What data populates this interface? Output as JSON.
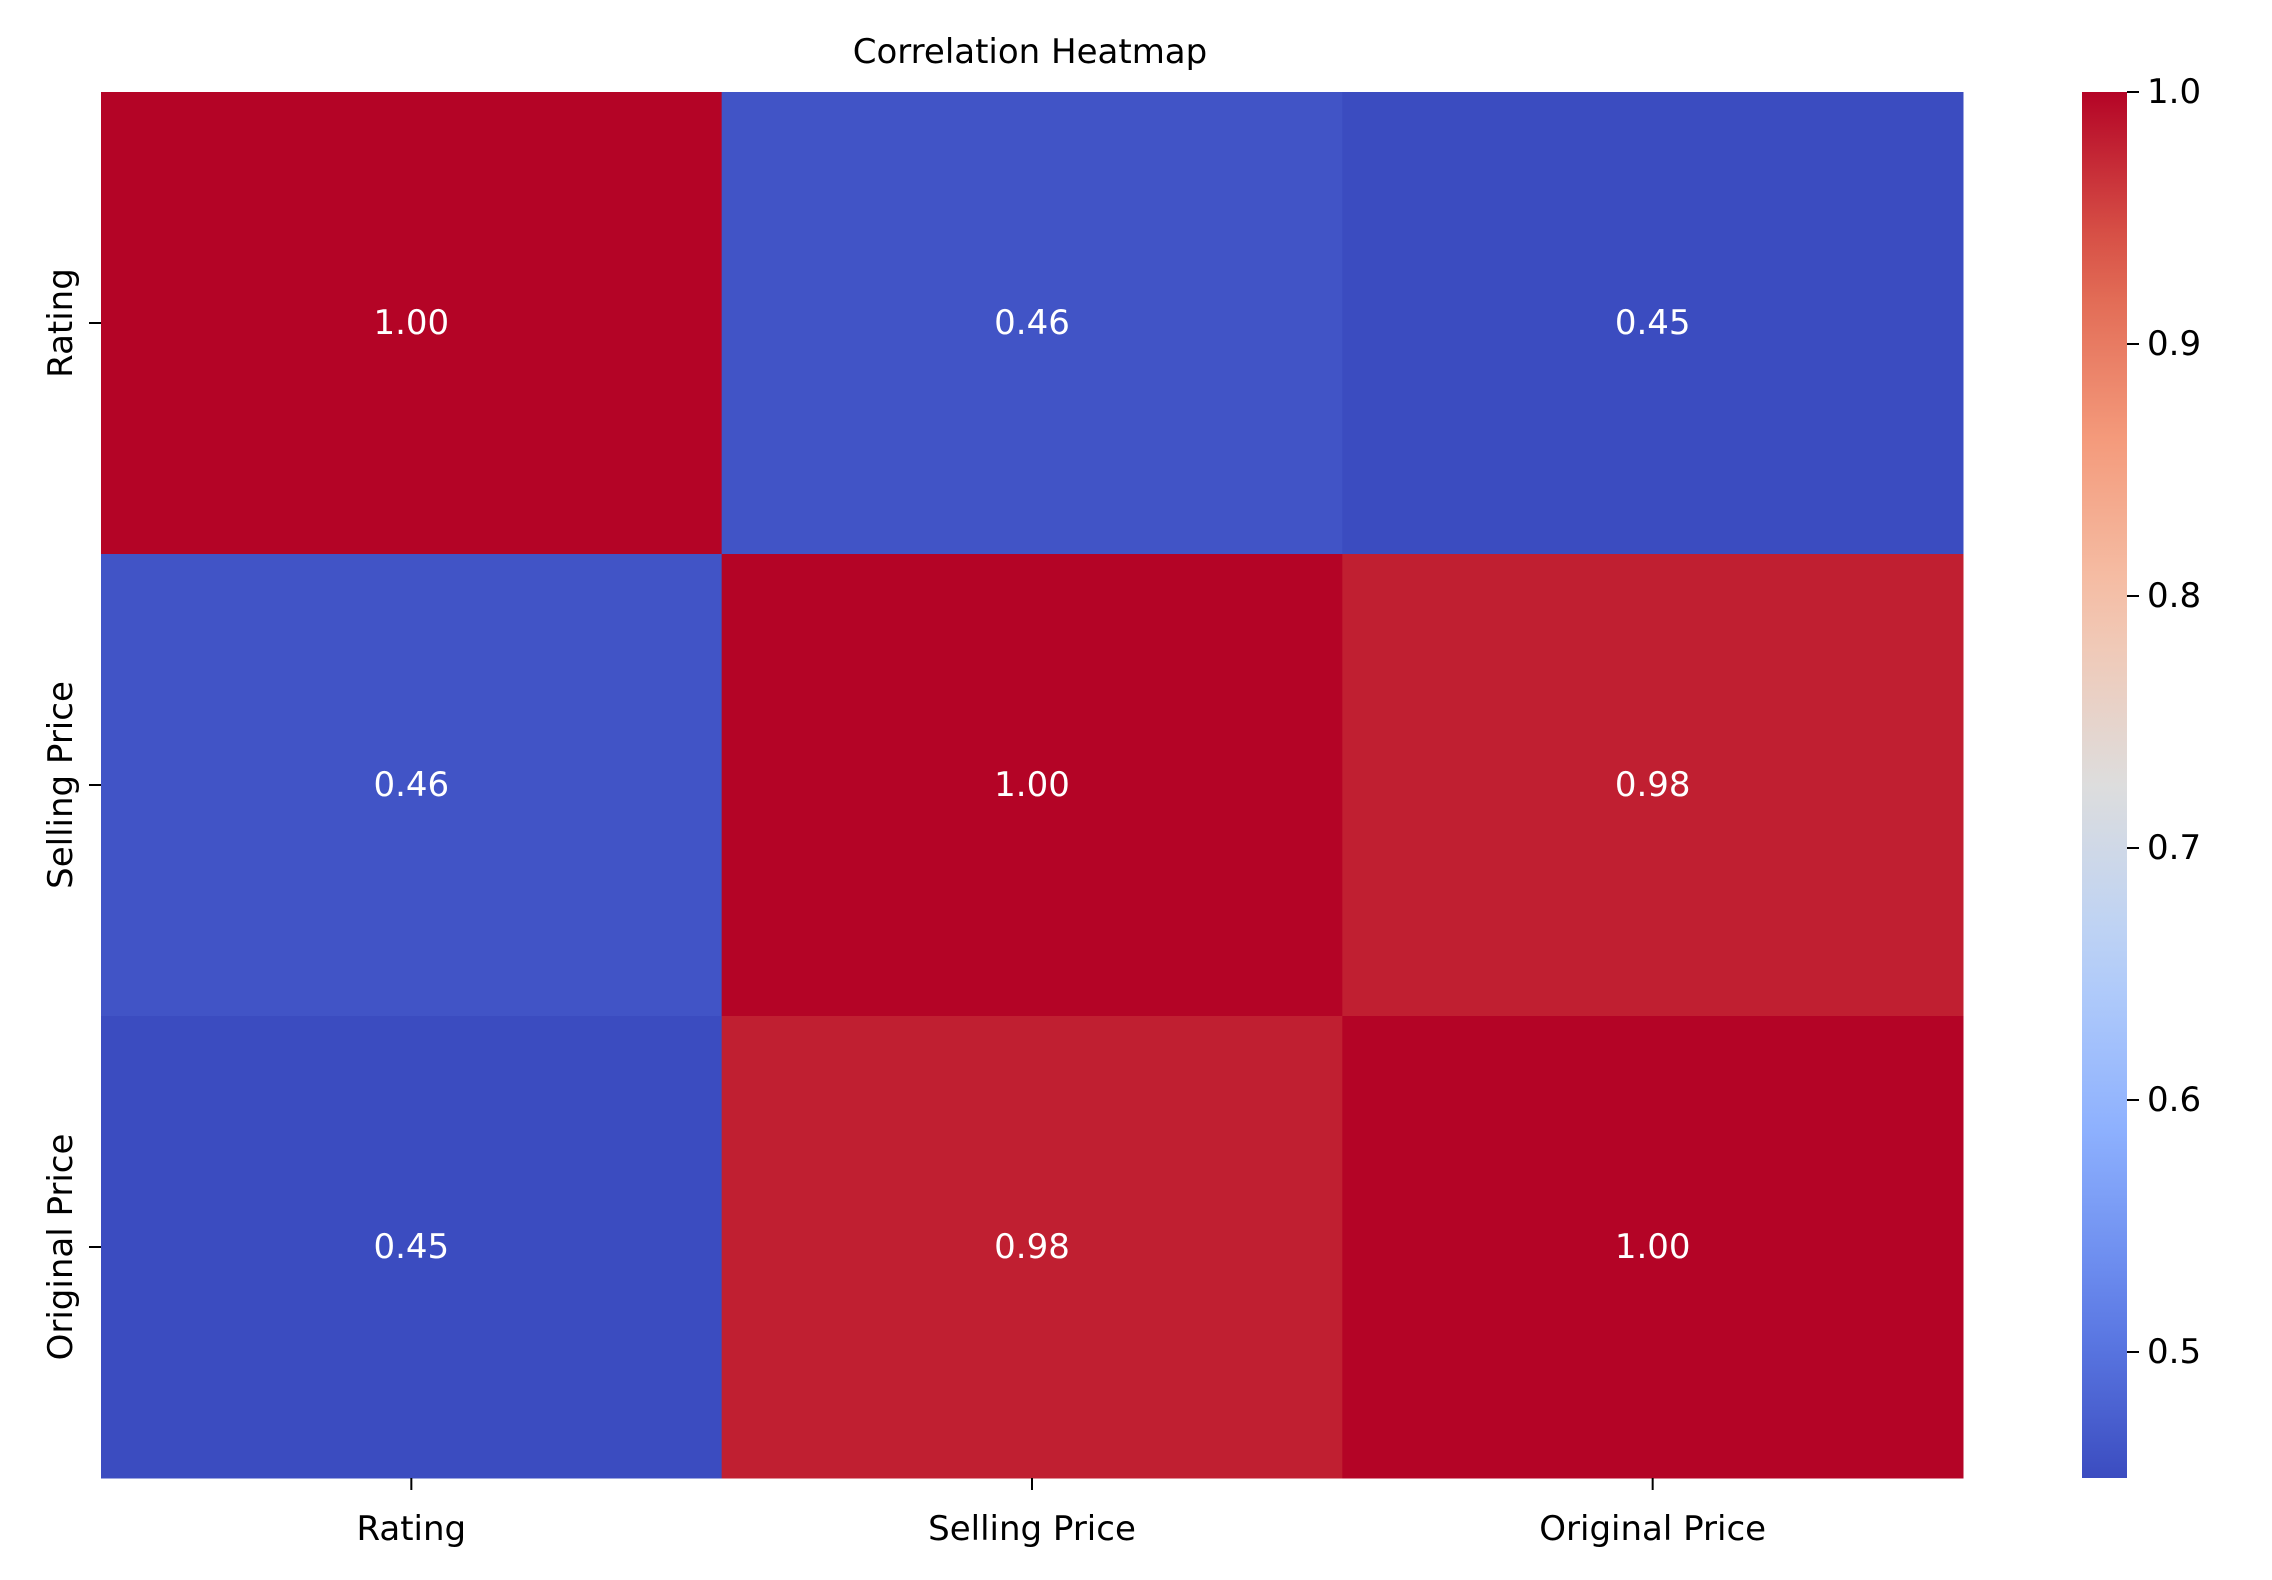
{
  "chart_data": {
    "type": "heatmap",
    "title": "Correlation Heatmap",
    "xlabel": "",
    "ylabel": "",
    "rows": [
      "Rating",
      "Selling Price",
      "Original Price"
    ],
    "columns": [
      "Rating",
      "Selling Price",
      "Original Price"
    ],
    "values": [
      [
        1.0,
        0.46,
        0.45
      ],
      [
        0.46,
        1.0,
        0.98
      ],
      [
        0.45,
        0.98,
        1.0
      ]
    ],
    "cell_labels": [
      [
        "1.00",
        "0.46",
        "0.45"
      ],
      [
        "0.46",
        "1.00",
        "0.98"
      ],
      [
        "0.45",
        "0.98",
        "1.00"
      ]
    ],
    "colormap": "coolwarm",
    "colorbar": {
      "range": [
        0.45,
        1.0
      ],
      "ticks": [
        0.5,
        0.6,
        0.7,
        0.8,
        0.9,
        1.0
      ],
      "tick_labels": [
        "0.5",
        "0.6",
        "0.7",
        "0.8",
        "0.9",
        "1.0"
      ]
    },
    "colors": {
      "low": "#3b4cc0",
      "mid": "#dddddd",
      "high": "#b40426",
      "annotation_text": "#ffffff"
    },
    "grid": false
  }
}
